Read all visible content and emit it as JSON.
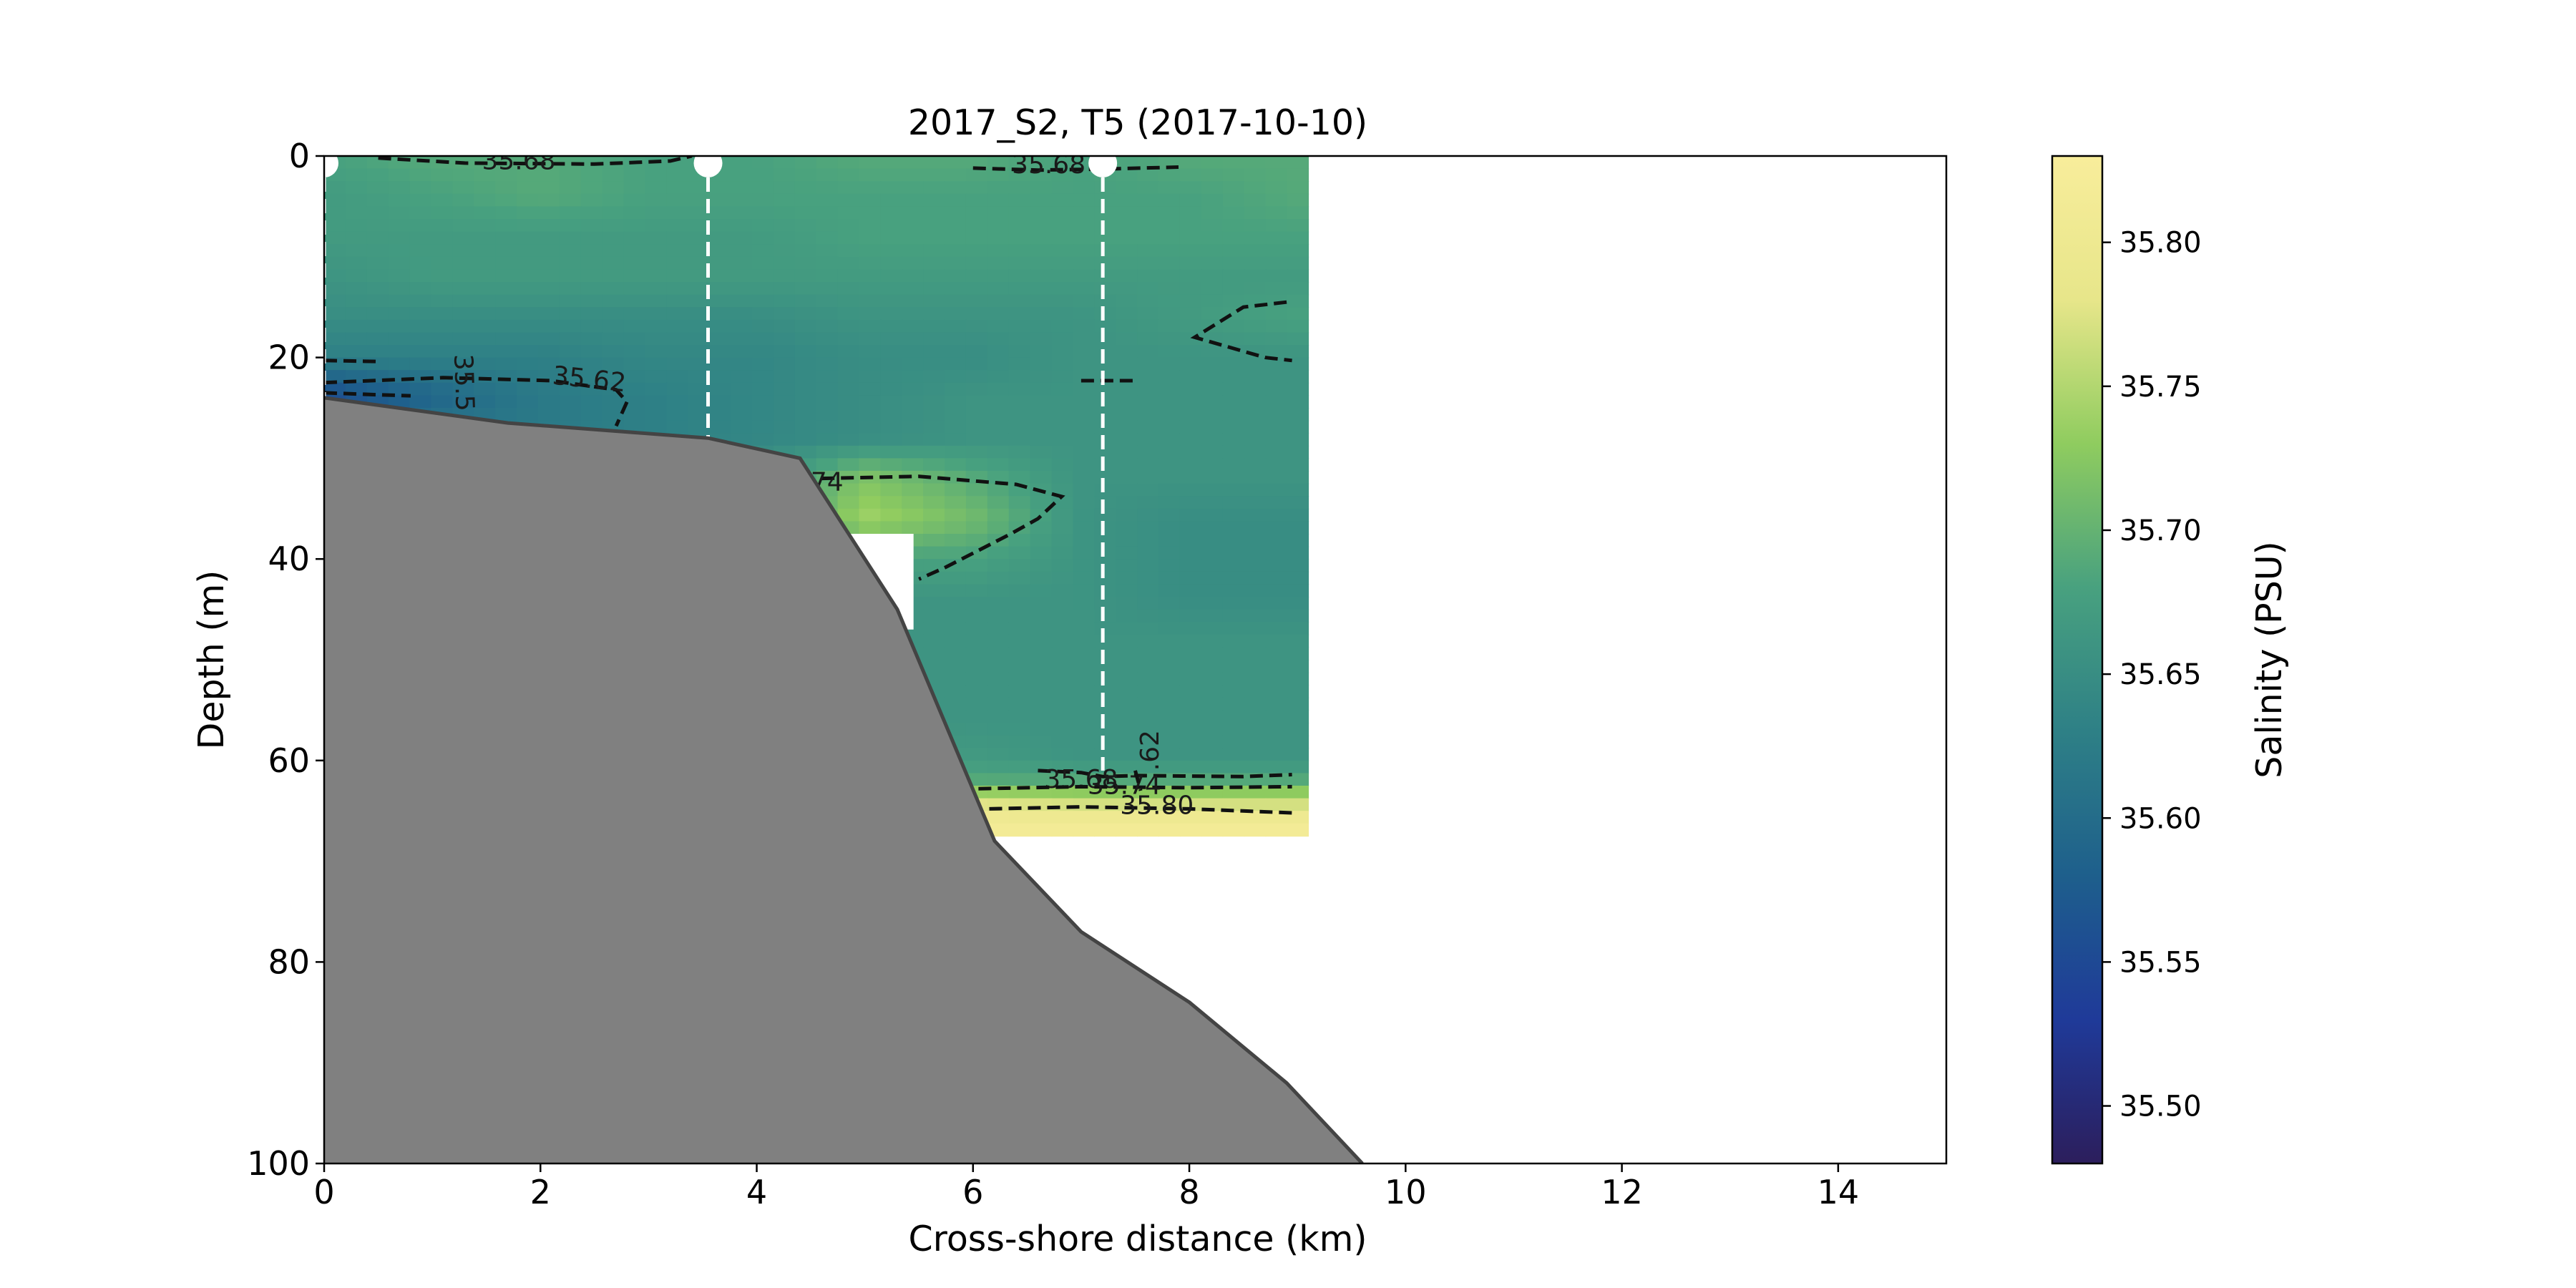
{
  "chart_data": {
    "type": "heatmap",
    "title": "2017_S2, T5 (2017-10-10)",
    "xlabel": "Cross-shore distance (km)",
    "ylabel": "Depth (m)",
    "xlim": [
      0,
      15
    ],
    "ylim": [
      100,
      0
    ],
    "x_ticks": [
      "0",
      "2",
      "4",
      "6",
      "8",
      "10",
      "12",
      "14"
    ],
    "y_ticks": [
      "0",
      "20",
      "40",
      "60",
      "80",
      "100"
    ],
    "colorbar": {
      "label": "Salinity (PSU)",
      "range": [
        35.48,
        35.83
      ],
      "ticks": [
        "35.50",
        "35.55",
        "35.60",
        "35.65",
        "35.70",
        "35.75",
        "35.80"
      ],
      "colormap": [
        "#2c1e5c",
        "#1f3a99",
        "#1e5f8c",
        "#2e8086",
        "#48a17f",
        "#8fcc5f",
        "#e7e68a",
        "#f8ed9b"
      ]
    },
    "data_extent": {
      "x": [
        0,
        9.1
      ],
      "depth": [
        0,
        67.5
      ]
    },
    "missing_box": {
      "x": [
        4.8,
        5.45
      ],
      "depth": [
        37.5,
        47
      ]
    },
    "stations": [
      {
        "x": 0.0,
        "depth_max": 24
      },
      {
        "x": 3.55,
        "depth_max": 28
      },
      {
        "x": 7.2,
        "depth_max": 61
      }
    ],
    "bathymetry": {
      "color": "#808080",
      "x": [
        0,
        1.7,
        3.55,
        4.4,
        5.3,
        6.2,
        7.0,
        8.0,
        8.9,
        9.6
      ],
      "depth": [
        24,
        26.5,
        28,
        30,
        45,
        68,
        77,
        84,
        92,
        100
      ]
    },
    "salinity_field": {
      "x": [
        0,
        1,
        2,
        3,
        4,
        5,
        6,
        7,
        8,
        9.1
      ],
      "depth": [
        0,
        4,
        8,
        12,
        16,
        20,
        24,
        28,
        32,
        36,
        40,
        44,
        48,
        52,
        56,
        60,
        62,
        64,
        66,
        67.5
      ],
      "values": [
        [
          35.68,
          35.69,
          35.69,
          35.68,
          35.68,
          35.69,
          35.69,
          35.68,
          35.69,
          35.69
        ],
        [
          35.67,
          35.68,
          35.69,
          35.68,
          35.68,
          35.68,
          35.68,
          35.68,
          35.68,
          35.69
        ],
        [
          35.67,
          35.67,
          35.67,
          35.67,
          35.67,
          35.68,
          35.68,
          35.68,
          35.68,
          35.68
        ],
        [
          35.66,
          35.67,
          35.67,
          35.67,
          35.67,
          35.67,
          35.67,
          35.67,
          35.67,
          35.67
        ],
        [
          35.65,
          35.65,
          35.65,
          35.65,
          35.65,
          35.66,
          35.66,
          35.66,
          35.67,
          35.68
        ],
        [
          35.63,
          35.63,
          35.63,
          35.64,
          35.64,
          35.65,
          35.65,
          35.66,
          35.66,
          35.66
        ],
        [
          35.55,
          35.59,
          35.62,
          35.63,
          35.64,
          35.65,
          35.66,
          35.66,
          35.66,
          35.66
        ],
        [
          35.62,
          35.62,
          35.62,
          35.63,
          35.64,
          35.65,
          35.66,
          35.66,
          35.66,
          35.66
        ],
        [
          35.62,
          35.62,
          35.62,
          35.63,
          35.66,
          35.72,
          35.69,
          35.66,
          35.66,
          35.66
        ],
        [
          35.62,
          35.62,
          35.62,
          35.63,
          35.66,
          35.74,
          35.71,
          35.66,
          35.65,
          35.65
        ],
        [
          35.62,
          35.62,
          35.62,
          35.63,
          35.65,
          35.68,
          35.68,
          35.66,
          35.65,
          35.65
        ],
        [
          35.62,
          35.62,
          35.62,
          35.63,
          35.65,
          35.66,
          35.66,
          35.66,
          35.65,
          35.65
        ],
        [
          35.62,
          35.62,
          35.62,
          35.63,
          35.65,
          35.66,
          35.66,
          35.66,
          35.66,
          35.66
        ],
        [
          35.62,
          35.62,
          35.62,
          35.63,
          35.65,
          35.66,
          35.66,
          35.66,
          35.66,
          35.66
        ],
        [
          35.62,
          35.62,
          35.62,
          35.63,
          35.65,
          35.66,
          35.66,
          35.66,
          35.66,
          35.66
        ],
        [
          35.62,
          35.62,
          35.62,
          35.63,
          35.65,
          35.67,
          35.67,
          35.66,
          35.66,
          35.66
        ],
        [
          35.62,
          35.62,
          35.62,
          35.63,
          35.66,
          35.69,
          35.69,
          35.69,
          35.69,
          35.69
        ],
        [
          35.62,
          35.62,
          35.62,
          35.64,
          35.7,
          35.78,
          35.77,
          35.76,
          35.76,
          35.76
        ],
        [
          35.62,
          35.62,
          35.62,
          35.65,
          35.75,
          35.81,
          35.81,
          35.81,
          35.81,
          35.81
        ],
        [
          35.62,
          35.62,
          35.62,
          35.65,
          35.76,
          35.82,
          35.82,
          35.82,
          35.82,
          35.82
        ]
      ]
    },
    "contours": [
      {
        "level": "35.68",
        "label": "35.68",
        "points": [
          [
            0.5,
            0.2
          ],
          [
            1.3,
            0.7
          ],
          [
            2.5,
            0.8
          ],
          [
            3.2,
            0.5
          ],
          [
            3.4,
            0.0
          ]
        ],
        "label_at": [
          1.8,
          0.6
        ],
        "label_angle": 0
      },
      {
        "level": "35.68",
        "label": "35.68",
        "points": [
          [
            6.0,
            1.2
          ],
          [
            6.6,
            1.4
          ],
          [
            7.2,
            1.3
          ],
          [
            7.9,
            1.1
          ]
        ],
        "label_at": [
          6.7,
          1.0
        ],
        "label_angle": 0
      },
      {
        "level": "35.68",
        "label": "",
        "points": [
          [
            8.9,
            14.5
          ],
          [
            8.5,
            15
          ],
          [
            8.05,
            18
          ],
          [
            8.7,
            20
          ],
          [
            8.95,
            20.3
          ]
        ],
        "label_at": null,
        "label_angle": 0
      },
      {
        "level": "35.68",
        "label": "",
        "points": [
          [
            7.0,
            22.3
          ],
          [
            7.5,
            22.3
          ]
        ],
        "label_at": null,
        "label_angle": 0
      },
      {
        "level": "35.62",
        "label": "35.62",
        "points": [
          [
            0.0,
            22.5
          ],
          [
            1.1,
            22.0
          ],
          [
            2.1,
            22.3
          ],
          [
            2.7,
            23.2
          ],
          [
            2.8,
            24.4
          ],
          [
            2.7,
            26.8
          ]
        ],
        "label_at": [
          2.45,
          22.3
        ],
        "label_angle": 6
      },
      {
        "level": "35.62",
        "label": "",
        "points": [
          [
            0.0,
            20.3
          ],
          [
            0.5,
            20.4
          ]
        ],
        "label_at": null,
        "label_angle": 0
      },
      {
        "level": "35.5",
        "label": "35.5",
        "points": [
          [
            0.0,
            23.5
          ],
          [
            0.5,
            23.7
          ],
          [
            0.8,
            23.8
          ]
        ],
        "label_at": [
          1.28,
          22.5
        ],
        "label_angle": 88
      },
      {
        "level": "35.74",
        "label": "74",
        "points": [
          [
            4.6,
            32.0
          ],
          [
            5.5,
            31.8
          ],
          [
            6.4,
            32.6
          ],
          [
            6.82,
            33.8
          ],
          [
            6.6,
            36.0
          ],
          [
            6.35,
            37.5
          ],
          [
            5.75,
            40.8
          ],
          [
            5.5,
            42.0
          ]
        ],
        "label_at": [
          4.65,
          32.5
        ],
        "label_angle": 0
      },
      {
        "level": "35.68",
        "label": "35.68",
        "points": [
          [
            6.6,
            61.0
          ],
          [
            7.0,
            61.2
          ],
          [
            7.2,
            61.6
          ],
          [
            7.5,
            61.5
          ],
          [
            8.5,
            61.6
          ],
          [
            8.95,
            61.4
          ]
        ],
        "label_at": [
          7.0,
          62.0
        ],
        "label_angle": 0
      },
      {
        "level": "35.74",
        "label": "35.74",
        "points": [
          [
            6.05,
            62.8
          ],
          [
            7.0,
            62.6
          ],
          [
            8.0,
            62.7
          ],
          [
            8.95,
            62.6
          ]
        ],
        "label_at": [
          7.4,
          62.6
        ],
        "label_angle": 0
      },
      {
        "level": "35.80",
        "label": "35.80",
        "points": [
          [
            6.15,
            64.8
          ],
          [
            7.0,
            64.6
          ],
          [
            8.0,
            64.8
          ],
          [
            8.95,
            65.2
          ]
        ],
        "label_at": [
          7.7,
          64.6
        ],
        "label_angle": 0
      },
      {
        "level": "35.62",
        "label": ".62",
        "points": [
          [
            7.5,
            61.0
          ],
          [
            7.55,
            63.0
          ]
        ],
        "label_at": [
          7.65,
          59.0
        ],
        "label_angle": -90
      }
    ]
  }
}
